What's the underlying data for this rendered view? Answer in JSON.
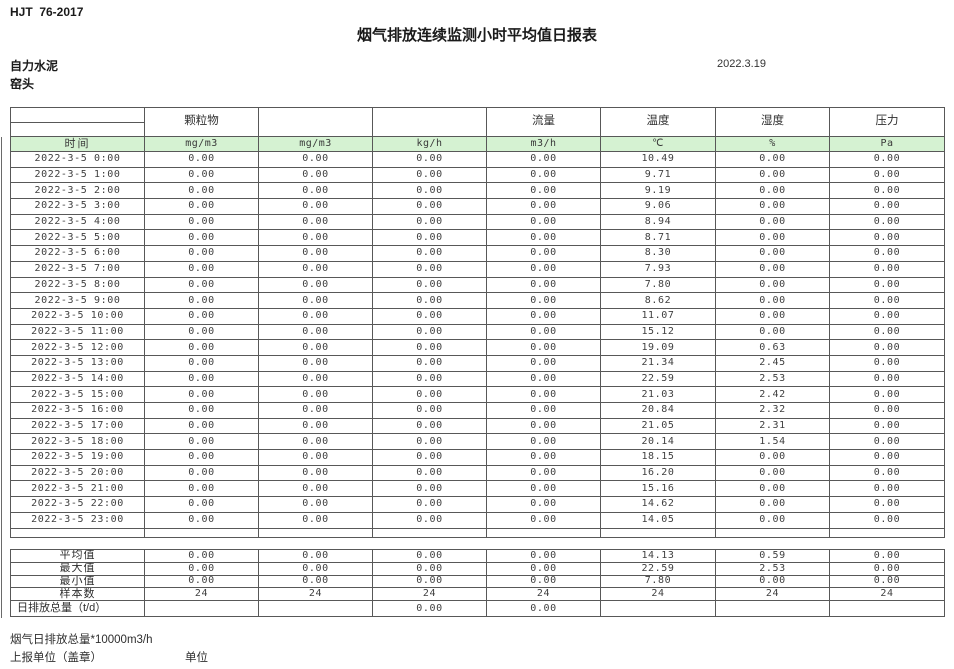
{
  "page": {
    "doc_code": "HJT  76-2017",
    "title": "烟气排放连续监测小时平均值日报表",
    "company": "自力水泥",
    "station": "窑头",
    "date": "2022.3.19"
  },
  "table": {
    "header_labels": [
      "颗粒物",
      "",
      "",
      "流量",
      "温度",
      "湿度",
      "压力"
    ],
    "unit_row": [
      "时间",
      "mg/m3",
      "mg/m3",
      "kg/h",
      "m3/h",
      "℃",
      "%",
      "Pa"
    ],
    "data_rows": [
      {
        "time": "2022-3-5 0:00",
        "values": [
          "0.00",
          "0.00",
          "0.00",
          "0.00",
          "10.49",
          "0.00",
          "0.00"
        ]
      },
      {
        "time": "2022-3-5 1:00",
        "values": [
          "0.00",
          "0.00",
          "0.00",
          "0.00",
          "9.71",
          "0.00",
          "0.00"
        ]
      },
      {
        "time": "2022-3-5 2:00",
        "values": [
          "0.00",
          "0.00",
          "0.00",
          "0.00",
          "9.19",
          "0.00",
          "0.00"
        ]
      },
      {
        "time": "2022-3-5 3:00",
        "values": [
          "0.00",
          "0.00",
          "0.00",
          "0.00",
          "9.06",
          "0.00",
          "0.00"
        ]
      },
      {
        "time": "2022-3-5 4:00",
        "values": [
          "0.00",
          "0.00",
          "0.00",
          "0.00",
          "8.94",
          "0.00",
          "0.00"
        ]
      },
      {
        "time": "2022-3-5 5:00",
        "values": [
          "0.00",
          "0.00",
          "0.00",
          "0.00",
          "8.71",
          "0.00",
          "0.00"
        ]
      },
      {
        "time": "2022-3-5 6:00",
        "values": [
          "0.00",
          "0.00",
          "0.00",
          "0.00",
          "8.30",
          "0.00",
          "0.00"
        ]
      },
      {
        "time": "2022-3-5 7:00",
        "values": [
          "0.00",
          "0.00",
          "0.00",
          "0.00",
          "7.93",
          "0.00",
          "0.00"
        ]
      },
      {
        "time": "2022-3-5 8:00",
        "values": [
          "0.00",
          "0.00",
          "0.00",
          "0.00",
          "7.80",
          "0.00",
          "0.00"
        ]
      },
      {
        "time": "2022-3-5 9:00",
        "values": [
          "0.00",
          "0.00",
          "0.00",
          "0.00",
          "8.62",
          "0.00",
          "0.00"
        ]
      },
      {
        "time": "2022-3-5 10:00",
        "values": [
          "0.00",
          "0.00",
          "0.00",
          "0.00",
          "11.07",
          "0.00",
          "0.00"
        ]
      },
      {
        "time": "2022-3-5 11:00",
        "values": [
          "0.00",
          "0.00",
          "0.00",
          "0.00",
          "15.12",
          "0.00",
          "0.00"
        ]
      },
      {
        "time": "2022-3-5 12:00",
        "values": [
          "0.00",
          "0.00",
          "0.00",
          "0.00",
          "19.09",
          "0.63",
          "0.00"
        ]
      },
      {
        "time": "2022-3-5 13:00",
        "values": [
          "0.00",
          "0.00",
          "0.00",
          "0.00",
          "21.34",
          "2.45",
          "0.00"
        ]
      },
      {
        "time": "2022-3-5 14:00",
        "values": [
          "0.00",
          "0.00",
          "0.00",
          "0.00",
          "22.59",
          "2.53",
          "0.00"
        ]
      },
      {
        "time": "2022-3-5 15:00",
        "values": [
          "0.00",
          "0.00",
          "0.00",
          "0.00",
          "21.03",
          "2.42",
          "0.00"
        ]
      },
      {
        "time": "2022-3-5 16:00",
        "values": [
          "0.00",
          "0.00",
          "0.00",
          "0.00",
          "20.84",
          "2.32",
          "0.00"
        ]
      },
      {
        "time": "2022-3-5 17:00",
        "values": [
          "0.00",
          "0.00",
          "0.00",
          "0.00",
          "21.05",
          "2.31",
          "0.00"
        ]
      },
      {
        "time": "2022-3-5 18:00",
        "values": [
          "0.00",
          "0.00",
          "0.00",
          "0.00",
          "20.14",
          "1.54",
          "0.00"
        ]
      },
      {
        "time": "2022-3-5 19:00",
        "values": [
          "0.00",
          "0.00",
          "0.00",
          "0.00",
          "18.15",
          "0.00",
          "0.00"
        ]
      },
      {
        "time": "2022-3-5 20:00",
        "values": [
          "0.00",
          "0.00",
          "0.00",
          "0.00",
          "16.20",
          "0.00",
          "0.00"
        ]
      },
      {
        "time": "2022-3-5 21:00",
        "values": [
          "0.00",
          "0.00",
          "0.00",
          "0.00",
          "15.16",
          "0.00",
          "0.00"
        ]
      },
      {
        "time": "2022-3-5 22:00",
        "values": [
          "0.00",
          "0.00",
          "0.00",
          "0.00",
          "14.62",
          "0.00",
          "0.00"
        ]
      },
      {
        "time": "2022-3-5 23:00",
        "values": [
          "0.00",
          "0.00",
          "0.00",
          "0.00",
          "14.05",
          "0.00",
          "0.00"
        ]
      }
    ],
    "summary_rows": [
      {
        "label": "平均值",
        "values": [
          "0.00",
          "0.00",
          "0.00",
          "0.00",
          "14.13",
          "0.59",
          "0.00"
        ]
      },
      {
        "label": "最大值",
        "values": [
          "0.00",
          "0.00",
          "0.00",
          "0.00",
          "22.59",
          "2.53",
          "0.00"
        ]
      },
      {
        "label": "最小值",
        "values": [
          "0.00",
          "0.00",
          "0.00",
          "0.00",
          "7.80",
          "0.00",
          "0.00"
        ]
      },
      {
        "label": "样本数",
        "values": [
          "24",
          "24",
          "24",
          "24",
          "24",
          "24",
          "24"
        ]
      },
      {
        "label": "日排放总量（t/d）",
        "values": [
          "",
          "",
          "0.00",
          "0.00",
          "",
          "",
          ""
        ]
      }
    ]
  },
  "footer": {
    "note": "烟气日排放总量*10000m3/h",
    "report_unit": "上报单位（盖章）",
    "unit_label": "单位"
  },
  "colors": {
    "header_green": "#d5f2d2",
    "grid": "#585858",
    "text": "#333333"
  }
}
